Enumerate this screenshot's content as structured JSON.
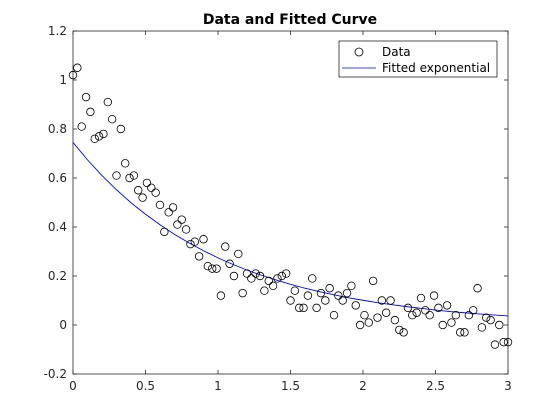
{
  "chart_data": {
    "type": "scatter",
    "title": "Data and Fitted Curve",
    "xlabel": "",
    "ylabel": "",
    "xlim": [
      0,
      3
    ],
    "ylim": [
      -0.2,
      1.2
    ],
    "xticks": [
      0,
      0.5,
      1,
      1.5,
      2,
      2.5,
      3
    ],
    "xtick_labels": [
      "0",
      "0.5",
      "1",
      "1.5",
      "2",
      "2.5",
      "3"
    ],
    "yticks": [
      -0.2,
      0,
      0.2,
      0.4,
      0.6,
      0.8,
      1,
      1.2
    ],
    "ytick_labels": [
      "-0.2",
      "0",
      "0.2",
      "0.4",
      "0.6",
      "0.8",
      "1",
      "1.2"
    ],
    "grid": false,
    "legend_location": "top-right",
    "series": [
      {
        "name": "Data",
        "kind": "markers",
        "marker": "circle",
        "color": "#000000",
        "x": [
          0.0,
          0.03,
          0.06,
          0.09,
          0.12,
          0.15,
          0.18,
          0.21,
          0.24,
          0.27,
          0.3,
          0.33,
          0.36,
          0.39,
          0.42,
          0.45,
          0.48,
          0.51,
          0.54,
          0.57,
          0.6,
          0.63,
          0.66,
          0.69,
          0.72,
          0.75,
          0.78,
          0.81,
          0.84,
          0.87,
          0.9,
          0.93,
          0.96,
          0.99,
          1.02,
          1.05,
          1.08,
          1.11,
          1.14,
          1.17,
          1.2,
          1.23,
          1.26,
          1.29,
          1.32,
          1.35,
          1.38,
          1.41,
          1.44,
          1.47,
          1.5,
          1.53,
          1.56,
          1.59,
          1.62,
          1.65,
          1.68,
          1.71,
          1.74,
          1.77,
          1.8,
          1.83,
          1.86,
          1.89,
          1.92,
          1.95,
          1.98,
          2.01,
          2.04,
          2.07,
          2.1,
          2.13,
          2.16,
          2.19,
          2.22,
          2.25,
          2.28,
          2.31,
          2.34,
          2.37,
          2.4,
          2.43,
          2.46,
          2.49,
          2.52,
          2.55,
          2.58,
          2.61,
          2.64,
          2.67,
          2.7,
          2.73,
          2.76,
          2.79,
          2.82,
          2.85,
          2.88,
          2.91,
          2.94,
          2.97,
          3.0
        ],
        "y": [
          1.02,
          1.05,
          0.81,
          0.93,
          0.87,
          0.76,
          0.77,
          0.78,
          0.91,
          0.84,
          0.61,
          0.8,
          0.66,
          0.6,
          0.61,
          0.55,
          0.52,
          0.58,
          0.56,
          0.54,
          0.49,
          0.38,
          0.46,
          0.48,
          0.41,
          0.43,
          0.39,
          0.33,
          0.34,
          0.28,
          0.35,
          0.24,
          0.23,
          0.23,
          0.12,
          0.32,
          0.25,
          0.2,
          0.29,
          0.13,
          0.21,
          0.19,
          0.21,
          0.2,
          0.14,
          0.18,
          0.16,
          0.19,
          0.2,
          0.21,
          0.1,
          0.14,
          0.07,
          0.07,
          0.12,
          0.19,
          0.07,
          0.13,
          0.1,
          0.15,
          0.04,
          0.12,
          0.1,
          0.13,
          0.16,
          0.08,
          0.0,
          0.04,
          0.01,
          0.18,
          0.03,
          0.1,
          0.05,
          0.1,
          0.02,
          -0.02,
          -0.03,
          0.07,
          0.04,
          0.05,
          0.11,
          0.06,
          0.04,
          0.12,
          0.07,
          0.0,
          0.08,
          0.01,
          0.04,
          -0.03,
          -0.03,
          0.04,
          0.06,
          0.15,
          -0.01,
          0.03,
          0.02,
          -0.08,
          0.0,
          -0.07,
          -0.07
        ]
      },
      {
        "name": "Fitted exponential",
        "kind": "line",
        "color": "#0000ff",
        "x": [
          0.0,
          0.1,
          0.2,
          0.3,
          0.4,
          0.5,
          0.6,
          0.7,
          0.8,
          0.9,
          1.0,
          1.1,
          1.2,
          1.3,
          1.4,
          1.5,
          1.6,
          1.7,
          1.8,
          1.9,
          2.0,
          2.1,
          2.2,
          2.3,
          2.4,
          2.5,
          2.6,
          2.7,
          2.8,
          2.9,
          3.0
        ],
        "y": [
          0.745,
          0.674,
          0.61,
          0.552,
          0.499,
          0.452,
          0.409,
          0.37,
          0.335,
          0.303,
          0.274,
          0.248,
          0.224,
          0.203,
          0.184,
          0.166,
          0.15,
          0.136,
          0.123,
          0.111,
          0.101,
          0.091,
          0.083,
          0.075,
          0.068,
          0.061,
          0.055,
          0.05,
          0.045,
          0.041,
          0.037
        ]
      }
    ]
  }
}
